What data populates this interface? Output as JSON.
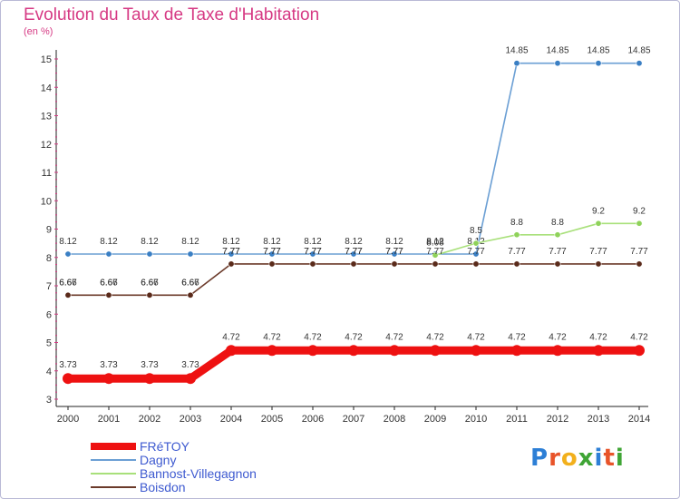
{
  "title": "Evolution du Taux de Taxe d'Habitation",
  "unit_label": "(en %)",
  "logo": "Proxiti",
  "chart_data": {
    "type": "line",
    "x": [
      2000,
      2001,
      2002,
      2003,
      2004,
      2005,
      2006,
      2007,
      2008,
      2009,
      2010,
      2011,
      2012,
      2013,
      2014
    ],
    "ylim": [
      3,
      15
    ],
    "yticks": [
      3,
      4,
      5,
      6,
      7,
      8,
      9,
      10,
      11,
      12,
      13,
      14,
      15
    ],
    "grid": "none",
    "legend_position": "bottom-left",
    "series": [
      {
        "name": "FRéTOY",
        "color": "#ee1111",
        "thick": true,
        "values": [
          3.73,
          3.73,
          3.73,
          3.73,
          4.72,
          4.72,
          4.72,
          4.72,
          4.72,
          4.72,
          4.72,
          4.72,
          4.72,
          4.72,
          4.72
        ],
        "labels": [
          "3.73",
          "3.73",
          "3.73",
          "3.73",
          "4.72",
          "4.72",
          "4.72",
          "4.72",
          "4.72",
          "4.72",
          "4.72",
          "4.72",
          "4.72",
          "4.72",
          "4.72"
        ]
      },
      {
        "name": "Dagny",
        "color": "#6b9fd4",
        "marker": "#3a7fc4",
        "thick": false,
        "values": [
          8.12,
          8.12,
          8.12,
          8.12,
          8.12,
          8.12,
          8.12,
          8.12,
          8.12,
          8.12,
          8.12,
          14.85,
          14.85,
          14.85,
          14.85
        ],
        "labels": [
          "8.12",
          "8.12",
          "8.12",
          "8.12",
          "8.12",
          "8.12",
          "8.12",
          "8.12",
          "8.12",
          "8.12",
          "8.12",
          "14.85",
          "14.85",
          "14.85",
          "14.85"
        ]
      },
      {
        "name": "Bannost-Villegagnon",
        "color": "#a8e07a",
        "marker": "#8fd25a",
        "thick": false,
        "start": 9,
        "values": [
          6.66,
          6.66,
          6.66,
          6.66,
          7.77,
          7.77,
          7.77,
          7.77,
          7.77,
          8.08,
          8.5,
          8.8,
          8.8,
          9.2,
          9.2
        ],
        "labels": [
          "6.66",
          "6.66",
          "6.66",
          "6.66",
          "7.77",
          "7.77",
          "7.77",
          "7.77",
          "7.77",
          "8.08",
          "8.5",
          "8.8",
          "8.8",
          "9.2",
          "9.2"
        ]
      },
      {
        "name": "Boisdon",
        "color": "#6b3a2a",
        "marker": "#5a2a1a",
        "thick": false,
        "values": [
          6.67,
          6.67,
          6.67,
          6.67,
          7.77,
          7.77,
          7.77,
          7.77,
          7.77,
          7.77,
          7.77,
          7.77,
          7.77,
          7.77,
          7.77
        ],
        "labels": [
          "6.67",
          "6.67",
          "6.67",
          "6.67",
          "7.77",
          "7.77",
          "7.77",
          "7.77",
          "7.77",
          "7.77",
          "7.77",
          "7.77",
          "7.77",
          "7.77",
          "7.77"
        ]
      }
    ]
  }
}
